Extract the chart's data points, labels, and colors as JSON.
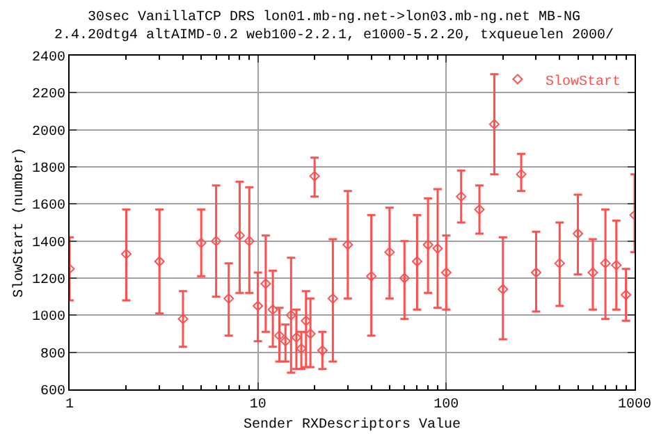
{
  "chart_data": {
    "type": "scatter",
    "title": "30sec VanillaTCP DRS lon01.mb-ng.net->lon03.mb-ng.net MB-NG\n2.4.20dtg4 altAIMD-0.2 web100-2.2.1, e1000-5.2.20, txqueuelen 2000/",
    "xlabel": "Sender RXDescriptors Value",
    "ylabel": "SlowStart (number)",
    "x": [
      1,
      2,
      3,
      4,
      5,
      6,
      7,
      8,
      9,
      10,
      11,
      12,
      13,
      14,
      15,
      16,
      17,
      18,
      19,
      20,
      22,
      25,
      30,
      40,
      50,
      60,
      70,
      80,
      90,
      100,
      120,
      150,
      180,
      200,
      250,
      300,
      400,
      500,
      600,
      700,
      800,
      900,
      1000
    ],
    "series": [
      {
        "name": "SlowStart",
        "color": "#ff5050",
        "values": [
          1250,
          1330,
          1290,
          980,
          1390,
          1400,
          1090,
          1430,
          1400,
          1050,
          1170,
          1030,
          890,
          860,
          1000,
          880,
          820,
          970,
          900,
          1750,
          810,
          1090,
          1380,
          1210,
          1340,
          1200,
          1290,
          1380,
          1360,
          1230,
          1640,
          1570,
          2030,
          1140,
          1760,
          1230,
          1280,
          1440,
          1230,
          1280,
          1270,
          1110,
          1540
        ],
        "errors": [
          [
            1080,
            1420
          ],
          [
            1080,
            1570
          ],
          [
            1010,
            1570
          ],
          [
            830,
            1130
          ],
          [
            1210,
            1570
          ],
          [
            1100,
            1700
          ],
          [
            890,
            1280
          ],
          [
            1120,
            1720
          ],
          [
            1120,
            1690
          ],
          [
            860,
            1230
          ],
          [
            910,
            1430
          ],
          [
            830,
            1240
          ],
          [
            750,
            1040
          ],
          [
            750,
            950
          ],
          [
            690,
            1310
          ],
          [
            710,
            1030
          ],
          [
            710,
            910
          ],
          [
            720,
            1130
          ],
          [
            720,
            1090
          ],
          [
            1640,
            1850
          ],
          [
            710,
            910
          ],
          [
            750,
            1410
          ],
          [
            1090,
            1670
          ],
          [
            890,
            1540
          ],
          [
            1090,
            1580
          ],
          [
            980,
            1400
          ],
          [
            1030,
            1540
          ],
          [
            1120,
            1630
          ],
          [
            1040,
            1680
          ],
          [
            1030,
            1430
          ],
          [
            1500,
            1780
          ],
          [
            1440,
            1700
          ],
          [
            1760,
            2300
          ],
          [
            870,
            1420
          ],
          [
            1670,
            1870
          ],
          [
            1020,
            1450
          ],
          [
            1050,
            1500
          ],
          [
            1220,
            1650
          ],
          [
            1030,
            1410
          ],
          [
            980,
            1570
          ],
          [
            1030,
            1510
          ],
          [
            970,
            1250
          ],
          [
            1340,
            1760
          ]
        ]
      }
    ],
    "log": "x",
    "xlim": [
      1,
      1000
    ],
    "xticks": [
      1,
      {
        "value": 2,
        "label": null
      },
      {
        "value": 3,
        "label": null
      },
      {
        "value": 4,
        "label": null
      },
      {
        "value": 5,
        "label": null
      },
      {
        "value": 6,
        "label": null
      },
      {
        "value": 7,
        "label": null
      },
      {
        "value": 8,
        "label": null
      },
      {
        "value": 9,
        "label": null
      },
      10,
      {
        "value": 20,
        "label": null
      },
      {
        "value": 30,
        "label": null
      },
      {
        "value": 40,
        "label": null
      },
      {
        "value": 50,
        "label": null
      },
      {
        "value": 60,
        "label": null
      },
      {
        "value": 70,
        "label": null
      },
      {
        "value": 80,
        "label": null
      },
      {
        "value": 90,
        "label": null
      },
      100,
      {
        "value": 200,
        "label": null
      },
      {
        "value": 300,
        "label": null
      },
      {
        "value": 400,
        "label": null
      },
      {
        "value": 500,
        "label": null
      },
      {
        "value": 600,
        "label": null
      },
      {
        "value": 700,
        "label": null
      },
      {
        "value": 800,
        "label": null
      },
      {
        "value": 900,
        "label": null
      },
      1000
    ],
    "ylim": [
      600,
      2400
    ],
    "yticks": [
      600,
      800,
      1000,
      1200,
      1400,
      1600,
      1800,
      2000,
      2200,
      2400
    ],
    "grid": true,
    "legend": "top right",
    "marker": "diamond"
  }
}
